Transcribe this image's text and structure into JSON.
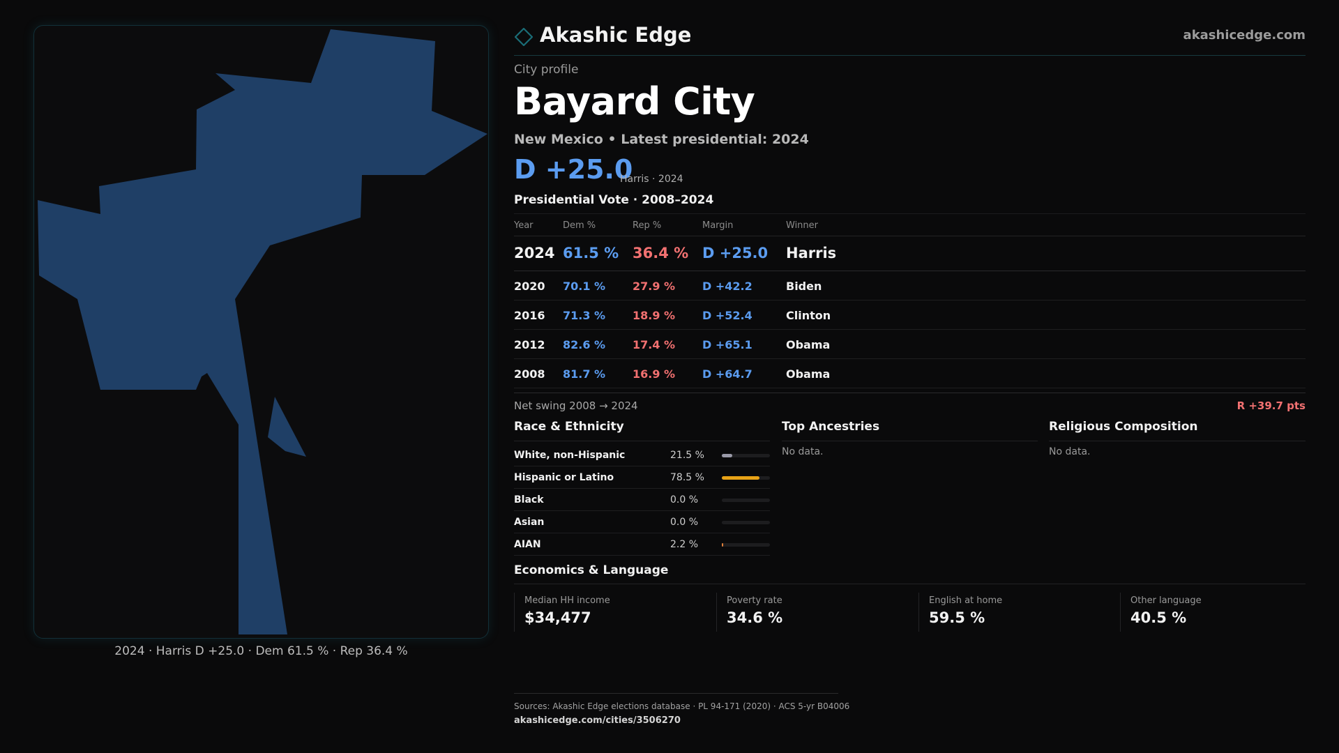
{
  "brand": {
    "name": "Akashic Edge",
    "url": "akashicedge.com",
    "accent": "#1a6d77"
  },
  "profile": {
    "eyebrow": "City profile",
    "city": "Bayard City",
    "subtitle": "New Mexico • Latest presidential: 2024",
    "margin": "D +25.0",
    "margin_note": "Harris · 2024"
  },
  "map": {
    "caption": "2024 · Harris D +25.0 · Dem 61.5 % · Rep 36.4 %",
    "fill": "#1f3f66"
  },
  "presidential": {
    "title": "Presidential Vote · 2008–2024",
    "headers": {
      "year": "Year",
      "dem": "Dem %",
      "rep": "Rep %",
      "margin": "Margin",
      "winner": "Winner"
    },
    "rows": [
      {
        "year": "2024",
        "dem": "61.5 %",
        "rep": "36.4 %",
        "margin": "D +25.0",
        "winner": "Harris"
      },
      {
        "year": "2020",
        "dem": "70.1 %",
        "rep": "27.9 %",
        "margin": "D +42.2",
        "winner": "Biden"
      },
      {
        "year": "2016",
        "dem": "71.3 %",
        "rep": "18.9 %",
        "margin": "D +52.4",
        "winner": "Clinton"
      },
      {
        "year": "2012",
        "dem": "82.6 %",
        "rep": "17.4 %",
        "margin": "D +65.1",
        "winner": "Obama"
      },
      {
        "year": "2008",
        "dem": "81.7 %",
        "rep": "16.9 %",
        "margin": "D +64.7",
        "winner": "Obama"
      }
    ],
    "swing_label": "Net swing 2008 → 2024",
    "swing_value": "R +39.7 pts"
  },
  "race": {
    "title": "Race & Ethnicity",
    "rows": [
      {
        "label": "White, non-Hispanic",
        "value": "21.5 %",
        "pct": 21.5,
        "color": "#9a9aa8"
      },
      {
        "label": "Hispanic or Latino",
        "value": "78.5 %",
        "pct": 78.5,
        "color": "#e8a317"
      },
      {
        "label": "Black",
        "value": "0.0 %",
        "pct": 0.0,
        "color": "#5b9cf0"
      },
      {
        "label": "Asian",
        "value": "0.0 %",
        "pct": 0.0,
        "color": "#5bc0a0"
      },
      {
        "label": "AIAN",
        "value": "2.2 %",
        "pct": 2.2,
        "color": "#e0803a"
      }
    ]
  },
  "ancestries": {
    "title": "Top Ancestries",
    "empty": "No data."
  },
  "religion": {
    "title": "Religious Composition",
    "empty": "No data."
  },
  "economics": {
    "title": "Economics & Language",
    "cards": [
      {
        "label": "Median HH income",
        "value": "$34,477"
      },
      {
        "label": "Poverty rate",
        "value": "34.6 %"
      },
      {
        "label": "English at home",
        "value": "59.5 %"
      },
      {
        "label": "Other language",
        "value": "40.5 %"
      }
    ]
  },
  "footer": {
    "sources": "Sources: Akashic Edge elections database · PL 94-171 (2020) · ACS 5-yr B04006",
    "url": "akashicedge.com/cities/3506270"
  }
}
